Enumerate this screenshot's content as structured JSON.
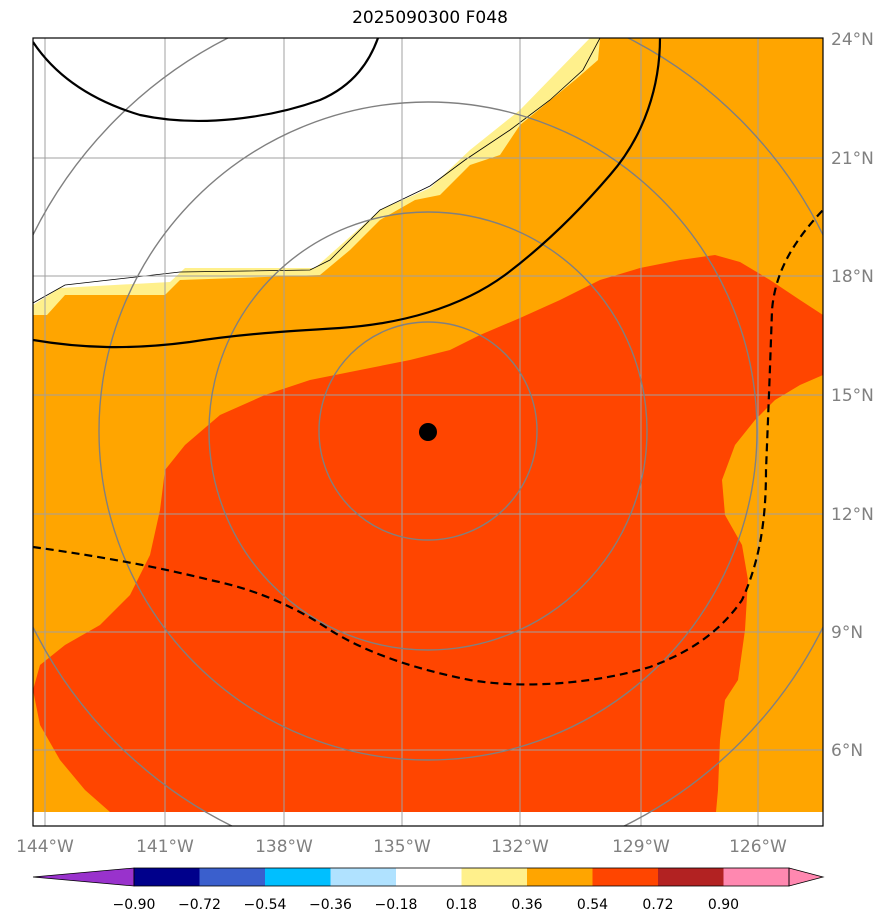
{
  "title": "2025090300 F048",
  "map": {
    "lat_labels": [
      "24°N",
      "21°N",
      "18°N",
      "15°N",
      "12°N",
      "9°N",
      "6°N"
    ],
    "lon_labels": [
      "144°W",
      "141°W",
      "138°W",
      "135°W",
      "132°W",
      "129°W",
      "126°W"
    ],
    "storm_center": {
      "lat": 14.0,
      "lon": -134.2
    },
    "range_ring_count": 4,
    "contour_levels_shading": [
      "0.18-0.36",
      "0.36-0.54",
      "0.54-0.72"
    ],
    "colors": {
      "shade_036_054": "#ffa500",
      "shade_054_072": "#ff4500",
      "shade_018_036": "#fff08c",
      "grid": "#a0a0a0",
      "ring": "#808080"
    }
  },
  "colorbar": {
    "tick_labels": [
      "−0.90",
      "−0.72",
      "−0.54",
      "−0.36",
      "−0.18",
      "0.18",
      "0.36",
      "0.54",
      "0.72",
      "0.90"
    ],
    "colors": [
      "#9932cc",
      "#00008b",
      "#3a5fcd",
      "#00bfff",
      "#b0e2ff",
      "#ffffff",
      "#fff08c",
      "#ffa500",
      "#ff4500",
      "#b22222",
      "#ff88b0"
    ]
  }
}
